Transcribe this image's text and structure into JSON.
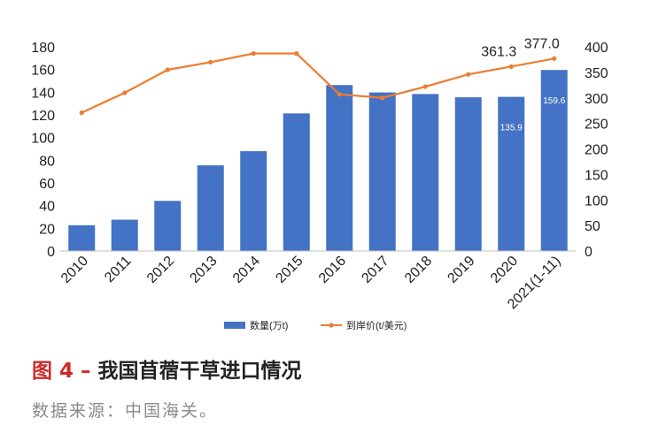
{
  "chart_data": {
    "type": "bar+line",
    "categories": [
      "2010",
      "2011",
      "2012",
      "2013",
      "2014",
      "2015",
      "2016",
      "2017",
      "2018",
      "2019",
      "2020",
      "2021(1-11)"
    ],
    "series": [
      {
        "name": "数量(万t)",
        "type": "bar",
        "axis": "left",
        "color": "#4472c4",
        "values": [
          22.7,
          27.6,
          44.2,
          75.5,
          88.0,
          121.3,
          146.3,
          139.8,
          138.4,
          135.5,
          135.9,
          159.6
        ]
      },
      {
        "name": "到岸价(t/美元)",
        "type": "line",
        "axis": "right",
        "color": "#ed7d31",
        "values": [
          271,
          310,
          355,
          370,
          387,
          387,
          307,
          300,
          322,
          346,
          361.3,
          377.0
        ]
      }
    ],
    "y_left": {
      "min": 0,
      "max": 180,
      "ticks": [
        "0",
        "20",
        "40",
        "60",
        "80",
        "100",
        "120",
        "140",
        "160",
        "180"
      ]
    },
    "y_right": {
      "min": 0,
      "max": 400,
      "ticks": [
        "0",
        "50",
        "100",
        "150",
        "200",
        "250",
        "300",
        "350",
        "400"
      ]
    },
    "bar_labels": [
      {
        "index": 10,
        "text": "135.9"
      },
      {
        "index": 11,
        "text": "159.6"
      }
    ],
    "line_labels": [
      {
        "index": 10,
        "text": "361.3"
      },
      {
        "index": 11,
        "text": "377.0"
      }
    ],
    "legend": {
      "placement": "bottom"
    },
    "grid": false
  },
  "caption": {
    "label": "图 4 –",
    "title": "我国苜蓿干草进口情况"
  },
  "source": "数据来源：中国海关。"
}
